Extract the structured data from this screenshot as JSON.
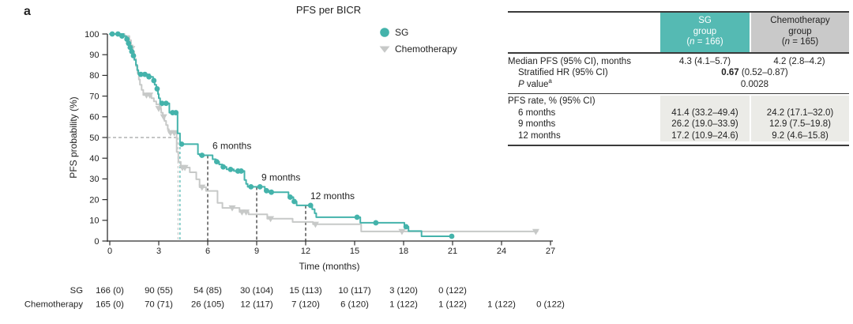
{
  "panel_label": "a",
  "chart_data": {
    "type": "line",
    "subtype": "kaplan-meier-step",
    "title": "PFS per BICR",
    "xlabel": "Time (months)",
    "ylabel": "PFS probability (%)",
    "xlim": [
      0,
      27
    ],
    "ylim": [
      0,
      100
    ],
    "xticks": [
      0,
      3,
      6,
      9,
      12,
      15,
      18,
      21,
      24,
      27
    ],
    "yticks": [
      0,
      10,
      20,
      30,
      40,
      50,
      60,
      70,
      80,
      90,
      100
    ],
    "grid": false,
    "legend_position": "upper right inside",
    "annotations": [
      {
        "text": "6 months",
        "t": 6,
        "p": 41.4
      },
      {
        "text": "9 months",
        "t": 9,
        "p": 26.2
      },
      {
        "text": "12 months",
        "t": 12,
        "p": 17.2
      }
    ],
    "median_guides": {
      "p": 50,
      "lines": [
        {
          "series": "Chemotherapy",
          "t": 4.18
        },
        {
          "series": "SG",
          "t": 4.3
        }
      ]
    },
    "series": [
      {
        "name": "SG",
        "color": "#44b3ab",
        "marker": "circle",
        "median_months": 4.3,
        "steps": [
          [
            0,
            100
          ],
          [
            0.85,
            99
          ],
          [
            1.0,
            97.5
          ],
          [
            1.1,
            95.5
          ],
          [
            1.2,
            93.5
          ],
          [
            1.3,
            91.5
          ],
          [
            1.4,
            89.5
          ],
          [
            1.5,
            87.5
          ],
          [
            1.6,
            85
          ],
          [
            1.68,
            82.5
          ],
          [
            1.75,
            80.5
          ],
          [
            2.45,
            79.3
          ],
          [
            2.65,
            77.5
          ],
          [
            2.75,
            75.5
          ],
          [
            2.85,
            73.5
          ],
          [
            2.95,
            71
          ],
          [
            3.0,
            69
          ],
          [
            3.08,
            66.5
          ],
          [
            3.65,
            62
          ],
          [
            4.15,
            52
          ],
          [
            4.3,
            46.8
          ],
          [
            5.4,
            42
          ],
          [
            5.5,
            41.4
          ],
          [
            6.3,
            39.5
          ],
          [
            6.5,
            38.3
          ],
          [
            6.7,
            37
          ],
          [
            6.9,
            35.8
          ],
          [
            7.15,
            34.6
          ],
          [
            7.6,
            33.8
          ],
          [
            8.25,
            29.5
          ],
          [
            8.35,
            27.6
          ],
          [
            8.45,
            26.2
          ],
          [
            9.5,
            24.3
          ],
          [
            9.75,
            23.6
          ],
          [
            10.95,
            21.2
          ],
          [
            11.25,
            19.1
          ],
          [
            11.45,
            17.2
          ],
          [
            12.4,
            15.4
          ],
          [
            12.55,
            13.4
          ],
          [
            12.65,
            11.5
          ],
          [
            15.35,
            8.8
          ],
          [
            18.05,
            6.9
          ],
          [
            18.3,
            4.8
          ],
          [
            19.1,
            2.3
          ],
          [
            20.95,
            2.3
          ]
        ],
        "censors": [
          [
            0.15,
            100
          ],
          [
            0.5,
            100
          ],
          [
            0.75,
            99
          ],
          [
            1.05,
            97.5
          ],
          [
            1.15,
            95.5
          ],
          [
            1.25,
            93.5
          ],
          [
            1.35,
            91.5
          ],
          [
            1.45,
            89.5
          ],
          [
            1.9,
            80.5
          ],
          [
            2.15,
            80.5
          ],
          [
            2.4,
            79.3
          ],
          [
            2.7,
            77.5
          ],
          [
            2.9,
            73.5
          ],
          [
            3.2,
            66.5
          ],
          [
            3.45,
            66.5
          ],
          [
            3.85,
            62
          ],
          [
            4.05,
            62
          ],
          [
            4.4,
            46.8
          ],
          [
            5.65,
            41.4
          ],
          [
            6.55,
            38.3
          ],
          [
            6.95,
            35.8
          ],
          [
            7.4,
            34.6
          ],
          [
            7.85,
            33.8
          ],
          [
            8.05,
            33.8
          ],
          [
            8.65,
            26.2
          ],
          [
            9.2,
            26.2
          ],
          [
            9.6,
            24.3
          ],
          [
            9.9,
            23.6
          ],
          [
            11.05,
            21.2
          ],
          [
            11.3,
            19.1
          ],
          [
            12.3,
            17.2
          ],
          [
            15.15,
            11.5
          ],
          [
            16.3,
            8.8
          ],
          [
            18.15,
            6.9
          ],
          [
            20.95,
            2.3
          ]
        ]
      },
      {
        "name": "Chemotherapy",
        "color": "#c7c9c8",
        "marker": "triangle-down",
        "median_months": 4.2,
        "steps": [
          [
            0,
            100
          ],
          [
            0.9,
            99
          ],
          [
            1.2,
            97
          ],
          [
            1.3,
            94.5
          ],
          [
            1.4,
            91.5
          ],
          [
            1.5,
            88
          ],
          [
            1.6,
            84.5
          ],
          [
            1.7,
            81
          ],
          [
            1.78,
            78
          ],
          [
            1.85,
            75.5
          ],
          [
            1.95,
            73
          ],
          [
            2.05,
            70.5
          ],
          [
            2.55,
            69
          ],
          [
            2.7,
            67.5
          ],
          [
            2.85,
            66
          ],
          [
            3.05,
            64
          ],
          [
            3.15,
            62
          ],
          [
            3.25,
            60
          ],
          [
            3.35,
            58
          ],
          [
            3.45,
            56
          ],
          [
            3.55,
            54
          ],
          [
            3.62,
            52.3
          ],
          [
            4.1,
            43
          ],
          [
            4.2,
            38.3
          ],
          [
            4.35,
            35.5
          ],
          [
            4.9,
            33.2
          ],
          [
            5.3,
            29.8
          ],
          [
            5.5,
            26
          ],
          [
            5.9,
            24.2
          ],
          [
            6.6,
            18.4
          ],
          [
            6.9,
            16
          ],
          [
            7.95,
            14
          ],
          [
            8.5,
            12.9
          ],
          [
            9.65,
            10.8
          ],
          [
            11.2,
            9.2
          ],
          [
            12.45,
            8.1
          ],
          [
            15.4,
            4.6
          ],
          [
            26.2,
            4.6
          ]
        ],
        "censors": [
          [
            1.35,
            93
          ],
          [
            2.25,
            70.5
          ],
          [
            2.45,
            70.5
          ],
          [
            3.0,
            64
          ],
          [
            3.3,
            60
          ],
          [
            3.72,
            52.3
          ],
          [
            3.95,
            52.3
          ],
          [
            4.45,
            35.5
          ],
          [
            4.6,
            35.5
          ],
          [
            5.65,
            26
          ],
          [
            7.5,
            16
          ],
          [
            8.1,
            14
          ],
          [
            8.35,
            14
          ],
          [
            9.85,
            10.8
          ],
          [
            12.6,
            8.1
          ],
          [
            17.9,
            4.6
          ],
          [
            26.1,
            4.6
          ]
        ]
      }
    ]
  },
  "risk_table": {
    "rows": [
      {
        "label": "SG",
        "values": [
          "166 (0)",
          "90 (55)",
          "54 (85)",
          "30 (104)",
          "15 (113)",
          "10 (117)",
          "3 (120)",
          "0 (122)"
        ]
      },
      {
        "label": "Chemotherapy",
        "values": [
          "165 (0)",
          "70 (71)",
          "26 (105)",
          "12 (117)",
          "7 (120)",
          "6 (120)",
          "1 (122)",
          "1 (122)",
          "1 (122)",
          "0 (122)"
        ]
      }
    ]
  },
  "stats_table": {
    "header": {
      "sg": {
        "line1": "SG",
        "line2": "group",
        "n_prefix": "(",
        "n_italic": "n",
        "n_rest": " = 166)"
      },
      "chemo": {
        "line1": "Chemotherapy",
        "line2": "group",
        "n_prefix": "(",
        "n_italic": "n",
        "n_rest": " = 165)"
      }
    },
    "rows": {
      "median": {
        "label": "Median PFS (95% CI), months",
        "sg": "4.3 (4.1–5.7)",
        "chemo": "4.2 (2.8–4.2)"
      },
      "hr": {
        "label": "Stratified HR (95% CI)",
        "value_bold": "0.67",
        "value_rest": " (0.52–0.87)"
      },
      "pvalue": {
        "label_italic": "P",
        "label_rest": " value",
        "sup": "a",
        "value": "0.0028"
      },
      "rate_header": {
        "label": "PFS rate, % (95% CI)"
      },
      "rate6": {
        "label": "6 months",
        "sg": "41.4 (33.2–49.4)",
        "chemo": "24.2 (17.1–32.0)"
      },
      "rate9": {
        "label": "9 months",
        "sg": "26.2 (19.0–33.9)",
        "chemo": "12.9 (7.5–19.8)"
      },
      "rate12": {
        "label": "12 months",
        "sg": "17.2 (10.9–24.6)",
        "chemo": "9.2 (4.6–15.8)"
      }
    }
  },
  "colors": {
    "sg_teal": "#44b3ab",
    "sg_header_teal": "#55bab3",
    "chemo_gray": "#c7c9c8",
    "chemo_header_gray": "#c9c9c9",
    "shaded_block": "#ebebe7",
    "rule": "#3a3a3a",
    "text": "#232323"
  }
}
